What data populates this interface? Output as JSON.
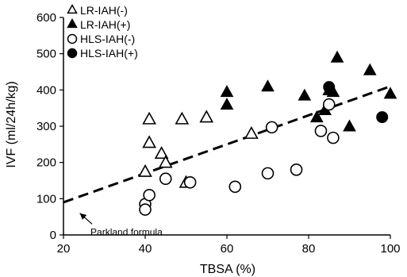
{
  "chart_data": {
    "type": "scatter",
    "xlabel": "TBSA (%)",
    "ylabel": "IVF (ml/24h/kg)",
    "xlim": [
      20,
      100
    ],
    "ylim": [
      0,
      600
    ],
    "x_ticks": [
      "20",
      "40",
      "60",
      "80",
      "100"
    ],
    "y_ticks": [
      "0",
      "100",
      "200",
      "300",
      "400",
      "500",
      "600"
    ],
    "grid": false,
    "legend_position": "top-left",
    "series": [
      {
        "name": "LR-IAH(-)",
        "marker": "triangle-open",
        "points": [
          [
            40,
            175
          ],
          [
            41,
            320
          ],
          [
            41,
            255
          ],
          [
            44,
            225
          ],
          [
            45,
            200
          ],
          [
            49,
            320
          ],
          [
            50,
            145
          ],
          [
            55,
            325
          ],
          [
            66,
            280
          ]
        ]
      },
      {
        "name": "LR-IAH(+)",
        "marker": "triangle-filled",
        "points": [
          [
            60,
            395
          ],
          [
            60,
            360
          ],
          [
            70,
            410
          ],
          [
            79,
            385
          ],
          [
            82,
            325
          ],
          [
            84,
            345
          ],
          [
            85,
            400
          ],
          [
            86,
            395
          ],
          [
            87,
            490
          ],
          [
            90,
            300
          ],
          [
            95,
            455
          ],
          [
            100,
            390
          ]
        ]
      },
      {
        "name": "HLS-IAH(-)",
        "marker": "circle-open",
        "points": [
          [
            40,
            85
          ],
          [
            40,
            70
          ],
          [
            41,
            110
          ],
          [
            45,
            155
          ],
          [
            51,
            145
          ],
          [
            62,
            133
          ],
          [
            70,
            170
          ],
          [
            71,
            297
          ],
          [
            77,
            180
          ],
          [
            83,
            287
          ],
          [
            85,
            360
          ],
          [
            86,
            268
          ]
        ]
      },
      {
        "name": "HLS-IAH(+)",
        "marker": "circle-filled",
        "points": [
          [
            85,
            408
          ],
          [
            98,
            325
          ]
        ]
      }
    ],
    "reference_line": {
      "style": "dashed",
      "points": [
        [
          20,
          90
        ],
        [
          100,
          410
        ]
      ]
    },
    "annotation": {
      "text": "Parkland formula",
      "arrow_from": [
        27,
        30
      ],
      "arrow_to": [
        24,
        60
      ]
    }
  },
  "colors": {
    "marker": "#000000",
    "axis": "#000000",
    "background": "#ffffff"
  }
}
